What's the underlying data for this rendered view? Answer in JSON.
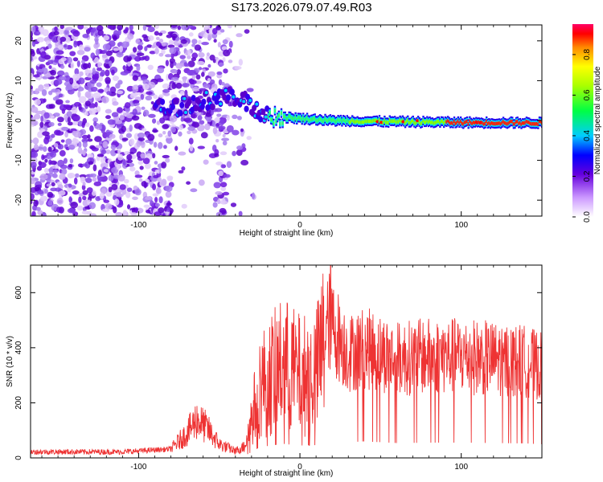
{
  "title": "S173.2026.079.07.49.R03",
  "chart_data": [
    {
      "type": "heatmap",
      "xlabel": "Height of straight line (km)",
      "ylabel": "Frequency (Hz)",
      "xlim": [
        -167,
        150
      ],
      "ylim": [
        -24,
        24
      ],
      "xticks": [
        -100,
        0,
        100
      ],
      "yticks": [
        -20,
        -10,
        0,
        10,
        20
      ],
      "colorbar": {
        "label": "Normalized spectral amplitude",
        "ticks": [
          "0.0",
          "0.2",
          "0.4",
          "0.6",
          "0.8"
        ],
        "range": [
          0,
          0.95
        ]
      },
      "ridge": [
        {
          "x": -80,
          "y": 3
        },
        {
          "x": -60,
          "y": 5
        },
        {
          "x": -45,
          "y": 6
        },
        {
          "x": -35,
          "y": 5
        },
        {
          "x": -25,
          "y": 2
        },
        {
          "x": -15,
          "y": 1
        },
        {
          "x": 0,
          "y": 0.5
        },
        {
          "x": 20,
          "y": 0
        },
        {
          "x": 60,
          "y": -0.3
        },
        {
          "x": 100,
          "y": -0.5
        },
        {
          "x": 150,
          "y": -0.6
        }
      ],
      "grid": false
    },
    {
      "type": "line",
      "xlabel": "Height of straight line (km)",
      "ylabel": "SNR (10 * v/v)",
      "xlim": [
        -167,
        150
      ],
      "ylim": [
        0,
        700
      ],
      "xticks": [
        -100,
        0,
        100
      ],
      "yticks": [
        0,
        200,
        400,
        600
      ],
      "line_color": "#ee3333",
      "series": [
        {
          "values_envelope": [
            {
              "x": -167,
              "y": 22
            },
            {
              "x": -110,
              "y": 22
            },
            {
              "x": -80,
              "y": 32
            },
            {
              "x": -70,
              "y": 90
            },
            {
              "x": -64,
              "y": 140
            },
            {
              "x": -58,
              "y": 110
            },
            {
              "x": -50,
              "y": 50
            },
            {
              "x": -40,
              "y": 25
            },
            {
              "x": -35,
              "y": 40
            },
            {
              "x": -30,
              "y": 140
            },
            {
              "x": -25,
              "y": 260
            },
            {
              "x": -20,
              "y": 290
            },
            {
              "x": -10,
              "y": 340
            },
            {
              "x": 0,
              "y": 300
            },
            {
              "x": 10,
              "y": 310
            },
            {
              "x": 18,
              "y": 500
            },
            {
              "x": 30,
              "y": 380
            },
            {
              "x": 40,
              "y": 400
            },
            {
              "x": 50,
              "y": 380
            },
            {
              "x": 60,
              "y": 360
            },
            {
              "x": 80,
              "y": 370
            },
            {
              "x": 100,
              "y": 370
            },
            {
              "x": 120,
              "y": 360
            },
            {
              "x": 140,
              "y": 350
            },
            {
              "x": 150,
              "y": 330
            }
          ],
          "peak": {
            "x": 19,
            "y": 700
          }
        }
      ],
      "grid": false
    }
  ]
}
